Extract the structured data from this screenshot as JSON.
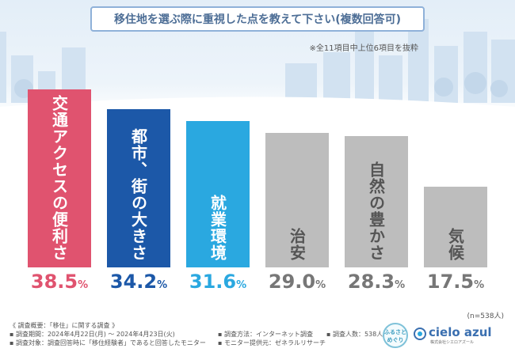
{
  "title": "移住地を選ぶ際に重視した点を教えて下さい(複数回答可)",
  "note": "※全11項目中上位6項目を抜粋",
  "sample_size": "(n=538人)",
  "colors": {
    "bar1": "#e0536f",
    "bar2": "#1c58a8",
    "bar3": "#2aa8e0",
    "bar_gray": "#bdbdbd",
    "title_border": "#8fb1d9",
    "title_text": "#4d6e96"
  },
  "chart_data": {
    "type": "bar",
    "title": "移住地を選ぶ際に重視した点を教えて下さい(複数回答可)",
    "categories": [
      "交通アクセスの便利さ",
      "都市、街の大きさ",
      "就業環境",
      "治安",
      "自然の豊かさ",
      "気候"
    ],
    "values": [
      38.5,
      34.2,
      31.6,
      29.0,
      28.3,
      17.5
    ],
    "value_labels": [
      "38.5",
      "34.2",
      "31.6",
      "29.0",
      "28.3",
      "17.5"
    ],
    "unit": "%",
    "bar_colors": [
      "#e0536f",
      "#1c58a8",
      "#2aa8e0",
      "#bdbdbd",
      "#bdbdbd",
      "#bdbdbd"
    ],
    "label_colors": [
      "#ffffff",
      "#ffffff",
      "#ffffff",
      "#555555",
      "#555555",
      "#555555"
    ],
    "value_colors": [
      "#e0536f",
      "#1c58a8",
      "#2aa8e0",
      "#777777",
      "#777777",
      "#777777"
    ],
    "xlabel": "",
    "ylabel": "",
    "ylim": [
      0,
      40
    ],
    "grid": false,
    "legend": "none"
  },
  "footer": {
    "survey_title": "《 調査概要：「移住」に関する調査 》",
    "period": "▪ 調査期間：2024年4月22日(月) ～ 2024年4月23日(火)",
    "target": "▪ 調査対象：調査回答時に「移住経験者」であると回答したモニター",
    "method": "▪ 調査方法：インターネット調査",
    "provider": "▪ モニター提供元：ゼネラルリサーチ",
    "count": "▪ 調査人数：538人"
  },
  "logos": {
    "badge_line1": "ふるさと",
    "badge_line2": "めぐり",
    "brand_name": "cielo azul",
    "brand_sub": "株式会社シエロアズール"
  }
}
